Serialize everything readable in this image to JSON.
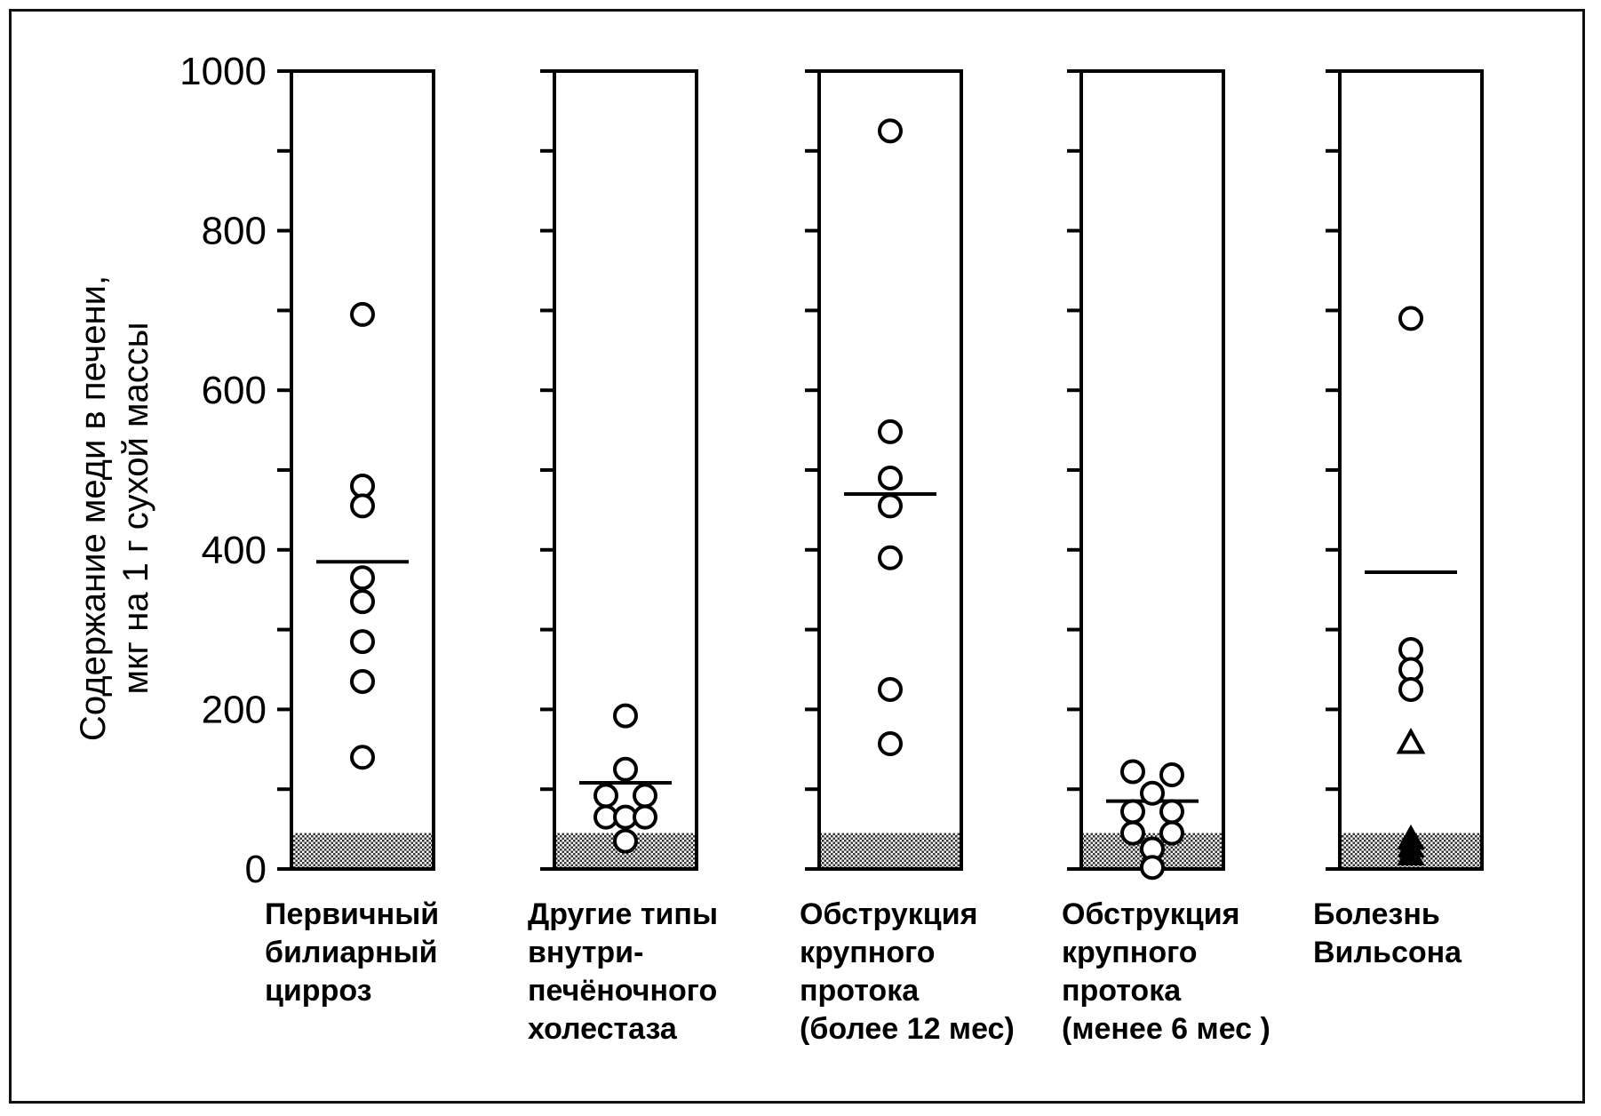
{
  "chart_data": {
    "type": "scatter",
    "title": "",
    "ylabel": [
      "Содержание меди в печени,",
      "мкг на 1 г сухой массы"
    ],
    "ylim": [
      0,
      1000
    ],
    "yticks": [
      0,
      200,
      400,
      600,
      800,
      1000
    ],
    "normal_range_max": 45,
    "panels": [
      {
        "label_lines": [
          "Первичный",
          "билиарный",
          "цирроз"
        ],
        "mean": 385,
        "points": [
          {
            "x": 0,
            "y": 695,
            "marker": "circle"
          },
          {
            "x": 0,
            "y": 480,
            "marker": "circle"
          },
          {
            "x": 0,
            "y": 455,
            "marker": "circle"
          },
          {
            "x": 0,
            "y": 365,
            "marker": "circle"
          },
          {
            "x": 0,
            "y": 335,
            "marker": "circle"
          },
          {
            "x": 0,
            "y": 285,
            "marker": "circle"
          },
          {
            "x": 0,
            "y": 235,
            "marker": "circle"
          },
          {
            "x": 0,
            "y": 140,
            "marker": "circle"
          }
        ]
      },
      {
        "label_lines": [
          "Другие типы",
          "внутри-",
          "печёночного",
          "холестаза"
        ],
        "mean": 108,
        "points": [
          {
            "x": 0,
            "y": 192,
            "marker": "circle"
          },
          {
            "x": 0,
            "y": 125,
            "marker": "circle"
          },
          {
            "x": -1,
            "y": 92,
            "marker": "circle"
          },
          {
            "x": 1,
            "y": 92,
            "marker": "circle"
          },
          {
            "x": -1,
            "y": 65,
            "marker": "circle"
          },
          {
            "x": 0,
            "y": 65,
            "marker": "circle"
          },
          {
            "x": 1,
            "y": 65,
            "marker": "circle"
          },
          {
            "x": 0,
            "y": 35,
            "marker": "circle"
          }
        ]
      },
      {
        "label_lines": [
          "Обструкция",
          "крупного",
          "протока",
          "(более 12 мес)"
        ],
        "mean": 470,
        "points": [
          {
            "x": 0,
            "y": 925,
            "marker": "circle"
          },
          {
            "x": 0,
            "y": 548,
            "marker": "circle"
          },
          {
            "x": 0,
            "y": 490,
            "marker": "circle"
          },
          {
            "x": 0,
            "y": 455,
            "marker": "circle"
          },
          {
            "x": 0,
            "y": 390,
            "marker": "circle"
          },
          {
            "x": 0,
            "y": 225,
            "marker": "circle"
          },
          {
            "x": 0,
            "y": 157,
            "marker": "circle"
          }
        ]
      },
      {
        "label_lines": [
          "Обструкция",
          "крупного",
          "протока",
          "(менее 6 мес )"
        ],
        "mean": 85,
        "points": [
          {
            "x": -1,
            "y": 122,
            "marker": "circle"
          },
          {
            "x": 1,
            "y": 118,
            "marker": "circle"
          },
          {
            "x": 0,
            "y": 95,
            "marker": "circle"
          },
          {
            "x": -1,
            "y": 72,
            "marker": "circle"
          },
          {
            "x": 1,
            "y": 72,
            "marker": "circle"
          },
          {
            "x": -1,
            "y": 45,
            "marker": "circle"
          },
          {
            "x": 1,
            "y": 45,
            "marker": "circle"
          },
          {
            "x": 0,
            "y": 25,
            "marker": "circle"
          },
          {
            "x": 0,
            "y": 2,
            "marker": "circle"
          }
        ]
      },
      {
        "label_lines": [
          "Болезнь",
          "Вильсона"
        ],
        "mean": 372,
        "points": [
          {
            "x": 0,
            "y": 690,
            "marker": "circle"
          },
          {
            "x": 0,
            "y": 275,
            "marker": "circle"
          },
          {
            "x": 0,
            "y": 250,
            "marker": "circle"
          },
          {
            "x": 0,
            "y": 225,
            "marker": "circle"
          },
          {
            "x": 0,
            "y": 158,
            "marker": "triangle-open"
          },
          {
            "x": 0,
            "y": 38,
            "marker": "triangle-filled"
          },
          {
            "x": 0,
            "y": 28,
            "marker": "triangle-filled"
          },
          {
            "x": 0,
            "y": 18,
            "marker": "triangle-filled"
          }
        ]
      }
    ]
  }
}
